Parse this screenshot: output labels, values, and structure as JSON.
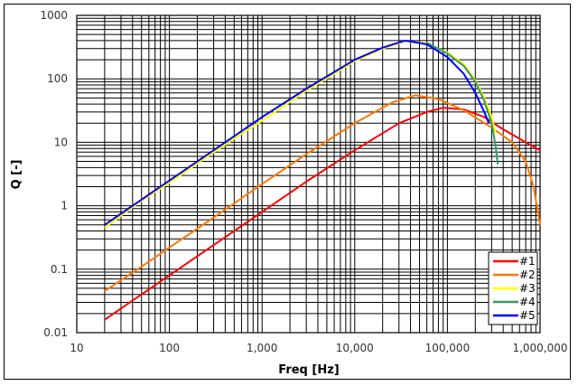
{
  "chart_data": {
    "type": "line",
    "title": "",
    "xlabel": "Freq [Hz]",
    "ylabel": "Q [-]",
    "xscale": "log",
    "yscale": "log",
    "xlim": [
      10,
      1000000
    ],
    "ylim": [
      0.01,
      1000
    ],
    "grid": true,
    "legend_position": "lower right (inside plot)",
    "x_tick_labels": [
      "10",
      "100",
      "1,000",
      "10,000",
      "100,000",
      "1,000,000"
    ],
    "y_tick_labels": [
      "0.01",
      "0.1",
      "1",
      "10",
      "100",
      "1000"
    ],
    "series": [
      {
        "name": "#1",
        "color": "#ff0000",
        "x": [
          20,
          50,
          100,
          300,
          1000,
          3000,
          10000,
          30000,
          60000,
          90000,
          150000,
          250000,
          400000,
          700000,
          1000000
        ],
        "y": [
          0.016,
          0.04,
          0.08,
          0.24,
          0.8,
          2.4,
          7.5,
          20,
          30,
          35,
          33,
          25,
          16,
          10,
          7.5
        ]
      },
      {
        "name": "#2",
        "color": "#ff7700",
        "x": [
          20,
          50,
          100,
          300,
          1000,
          3000,
          10000,
          25000,
          45000,
          80000,
          150000,
          300000,
          500000,
          700000,
          850000,
          1000000
        ],
        "y": [
          0.045,
          0.11,
          0.22,
          0.65,
          2.2,
          6.5,
          20,
          42,
          55,
          48,
          32,
          17,
          10,
          5,
          2,
          0.5
        ]
      },
      {
        "name": "#3",
        "color": "#ffff00",
        "x": [
          20,
          50,
          100,
          300,
          1000,
          3000,
          10000,
          20000,
          35000,
          60000,
          100000,
          150000,
          200000,
          250000,
          300000,
          330000
        ],
        "y": [
          0.45,
          1.2,
          2.3,
          7,
          22,
          65,
          190,
          300,
          390,
          360,
          260,
          170,
          95,
          50,
          25,
          14
        ]
      },
      {
        "name": "#4",
        "color": "#339966",
        "x": [
          60000,
          100000,
          150000,
          200000,
          250000,
          300000,
          330000,
          350000
        ],
        "y": [
          370,
          250,
          160,
          90,
          45,
          20,
          9,
          4.5
        ]
      },
      {
        "name": "#5",
        "color": "#0000ff",
        "x": [
          20,
          50,
          100,
          300,
          1000,
          3000,
          10000,
          20000,
          35000,
          60000,
          100000,
          150000,
          200000,
          250000,
          280000
        ],
        "y": [
          0.5,
          1.25,
          2.5,
          7.5,
          25,
          70,
          200,
          310,
          400,
          350,
          220,
          120,
          60,
          30,
          20
        ]
      }
    ]
  }
}
